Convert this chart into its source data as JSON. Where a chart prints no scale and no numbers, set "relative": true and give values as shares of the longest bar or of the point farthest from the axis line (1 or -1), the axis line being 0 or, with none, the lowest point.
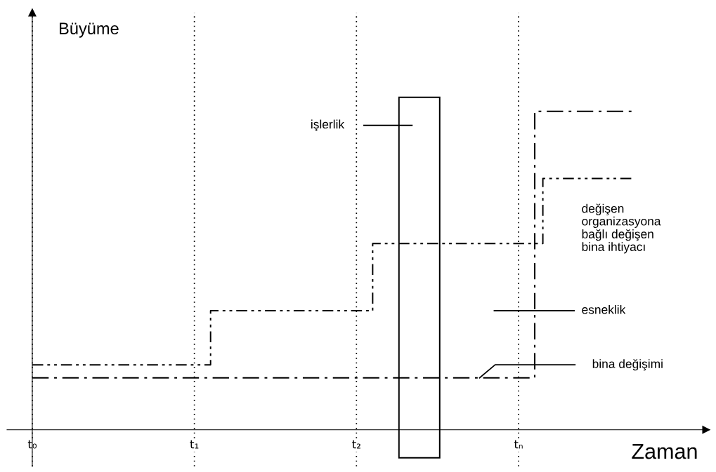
{
  "chart_data": {
    "type": "step",
    "relative": true,
    "xlabel": "Zaman",
    "ylabel": "Büyüme",
    "categories": [
      "t₀",
      null,
      null,
      null,
      null,
      null,
      null,
      null,
      null,
      null,
      null,
      null,
      null,
      null,
      null,
      null,
      null,
      null,
      null,
      null,
      "t₁",
      null,
      null,
      null,
      null,
      null,
      null,
      null,
      null,
      null,
      null,
      null,
      null,
      null,
      null,
      null,
      null,
      null,
      null,
      null,
      "t₂",
      null,
      null,
      null,
      null,
      null,
      null,
      null,
      null,
      null,
      null,
      null,
      null,
      null,
      null,
      null,
      null,
      null,
      null,
      null,
      "tₙ",
      null,
      null,
      null,
      null,
      null,
      null,
      null,
      null,
      null,
      null,
      null,
      null,
      null,
      null
    ],
    "series": [
      {
        "name": "değişen\norganizasyona\nbağlı değişen\nbina ihtiyacı",
        "color": "#000000",
        "line_style": "dashdotdot",
        "values": [
          0.204,
          0.204,
          0.204,
          0.204,
          0.204,
          0.204,
          0.204,
          0.204,
          0.204,
          0.204,
          0.204,
          0.204,
          0.204,
          0.204,
          0.204,
          0.204,
          0.204,
          0.204,
          0.204,
          0.204,
          0.204,
          0.204,
          0.374,
          0.374,
          0.374,
          0.374,
          0.374,
          0.374,
          0.374,
          0.374,
          0.374,
          0.374,
          0.374,
          0.374,
          0.374,
          0.374,
          0.374,
          0.374,
          0.374,
          0.374,
          0.374,
          0.374,
          0.585,
          0.585,
          0.585,
          0.585,
          0.585,
          0.585,
          0.585,
          0.585,
          0.585,
          0.585,
          0.585,
          0.585,
          0.585,
          0.585,
          0.585,
          0.585,
          0.585,
          0.585,
          0.585,
          0.585,
          0.585,
          0.789,
          0.789,
          0.789,
          0.789,
          0.789,
          0.789,
          0.789,
          0.789,
          0.789,
          0.789,
          0.789,
          0.789
        ]
      },
      {
        "color": "#000000",
        "line_style": "dashdot",
        "values": [
          0.163,
          0.163,
          0.163,
          0.163,
          0.163,
          0.163,
          0.163,
          0.163,
          0.163,
          0.163,
          0.163,
          0.163,
          0.163,
          0.163,
          0.163,
          0.163,
          0.163,
          0.163,
          0.163,
          0.163,
          0.163,
          0.163,
          0.163,
          0.163,
          0.163,
          0.163,
          0.163,
          0.163,
          0.163,
          0.163,
          0.163,
          0.163,
          0.163,
          0.163,
          0.163,
          0.163,
          0.163,
          0.163,
          0.163,
          0.163,
          0.163,
          0.163,
          0.163,
          0.163,
          0.163,
          0.163,
          0.163,
          0.163,
          0.163,
          0.163,
          0.163,
          0.163,
          0.163,
          0.163,
          0.163,
          0.163,
          0.163,
          0.163,
          0.163,
          0.163,
          0.163,
          0.163,
          1.0,
          1.0,
          1.0,
          1.0,
          1.0,
          1.0,
          1.0,
          1.0,
          1.0,
          1.0,
          1.0,
          1.0,
          1.0
        ]
      }
    ],
    "annotations": [
      "işlerlik",
      "esneklik",
      "bina değişimi"
    ],
    "grid": "x",
    "legend": false
  }
}
